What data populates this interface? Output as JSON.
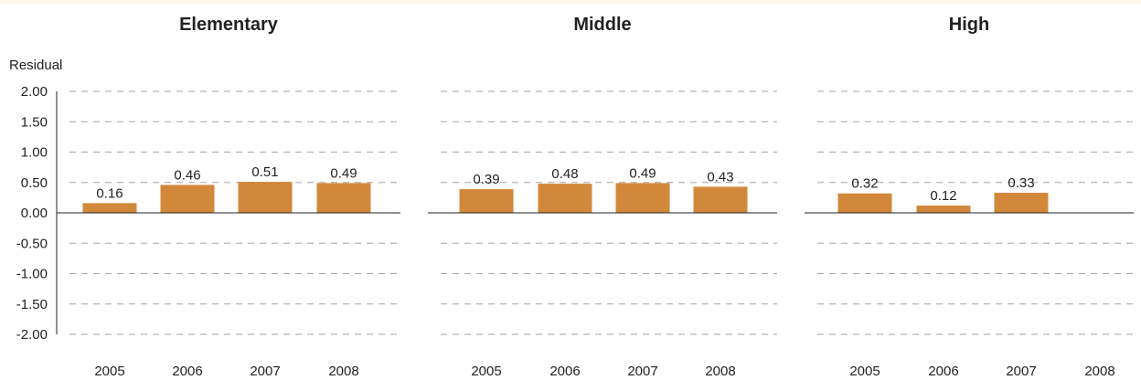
{
  "chart_data": {
    "type": "bar",
    "ylabel": "Residual",
    "ylim": [
      -2,
      2
    ],
    "yticks": [
      "2.00",
      "1.50",
      "1.00",
      "0.50",
      "0.00",
      "-0.50",
      "-1.00",
      "-1.50",
      "-2.00"
    ],
    "categories": [
      "2005",
      "2006",
      "2007",
      "2008"
    ],
    "grid": true,
    "bar_color": "#d2883a",
    "panels": [
      {
        "title": "Elementary",
        "values": [
          0.16,
          0.46,
          0.51,
          0.49
        ],
        "labels": [
          "0.16",
          "0.46",
          "0.51",
          "0.49"
        ]
      },
      {
        "title": "Middle",
        "values": [
          0.39,
          0.48,
          0.49,
          0.43
        ],
        "labels": [
          "0.39",
          "0.48",
          "0.49",
          "0.43"
        ]
      },
      {
        "title": "High",
        "values": [
          0.32,
          0.12,
          0.33,
          null
        ],
        "labels": [
          "0.32",
          "0.12",
          "0.33",
          null
        ]
      }
    ]
  }
}
